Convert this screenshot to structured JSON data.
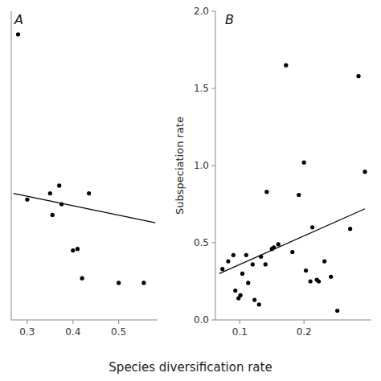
{
  "chart_data": [
    {
      "type": "scatter",
      "title": "A",
      "series": [
        {
          "type": "scatter",
          "color": "#000000",
          "x": [
            0.28,
            0.3,
            0.35,
            0.355,
            0.37,
            0.375,
            0.4,
            0.41,
            0.42,
            0.435,
            0.5,
            0.555
          ],
          "values": [
            1.85,
            0.78,
            0.82,
            0.68,
            0.87,
            0.75,
            0.45,
            0.46,
            0.27,
            0.82,
            0.24,
            0.24
          ]
        },
        {
          "type": "line",
          "color": "#000000",
          "x": [
            0.27,
            0.58
          ],
          "values": [
            0.82,
            0.63
          ]
        }
      ],
      "xlim": [
        0.265,
        0.585
      ],
      "ylim": [
        0.0,
        2.0
      ],
      "xticks": [
        0.3,
        0.4,
        0.5
      ],
      "yticks": [],
      "tick_labels": "x",
      "grid": false
    },
    {
      "type": "scatter",
      "title": "B",
      "ylabel": "Subspeciation rate",
      "xlabel": "Species diversification rate",
      "series": [
        {
          "type": "scatter",
          "color": "#000000",
          "x": [
            0.073,
            0.082,
            0.09,
            0.093,
            0.098,
            0.101,
            0.104,
            0.11,
            0.113,
            0.12,
            0.123,
            0.13,
            0.133,
            0.14,
            0.142,
            0.15,
            0.153,
            0.16,
            0.172,
            0.182,
            0.192,
            0.2,
            0.203,
            0.21,
            0.213,
            0.22,
            0.223,
            0.232,
            0.242,
            0.252,
            0.272
          ],
          "values": [
            0.33,
            0.38,
            0.42,
            0.19,
            0.14,
            0.16,
            0.3,
            0.42,
            0.24,
            0.36,
            0.13,
            0.1,
            0.41,
            0.36,
            0.83,
            0.46,
            0.47,
            0.49,
            1.65,
            0.44,
            0.81,
            1.02,
            0.32,
            0.25,
            0.6,
            0.26,
            0.25,
            0.38,
            0.28,
            0.06,
            0.59
          ]
        },
        {
          "type": "scatter",
          "color": "#000000",
          "x": [
            0.285,
            0.295
          ],
          "values": [
            1.58,
            0.96
          ]
        },
        {
          "type": "line",
          "color": "#000000",
          "x": [
            0.068,
            0.295
          ],
          "values": [
            0.3,
            0.72
          ]
        }
      ],
      "xlim": [
        0.062,
        0.305
      ],
      "ylim": [
        0.0,
        2.0
      ],
      "xticks": [
        0.1,
        0.2
      ],
      "yticks": [
        {
          "value": 0.0,
          "label": "0.0"
        },
        0.5,
        {
          "value": 1.0,
          "label": "1.0"
        },
        1.5,
        {
          "value": 2.0,
          "label": "2.0"
        }
      ],
      "grid": false
    }
  ]
}
